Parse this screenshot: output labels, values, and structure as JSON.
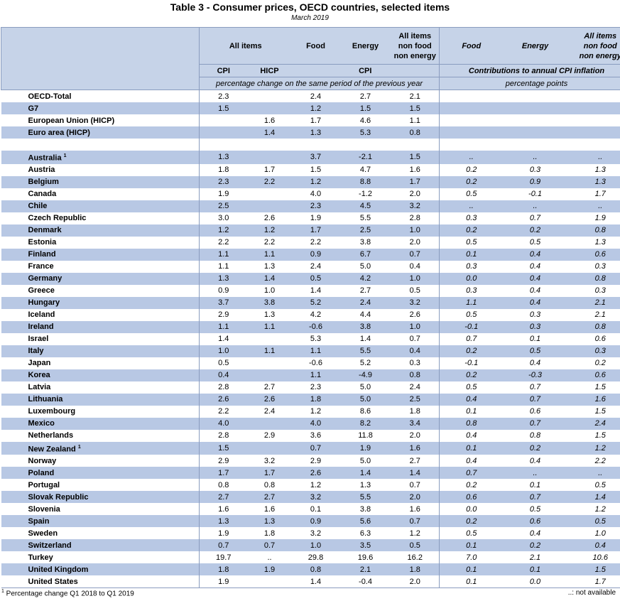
{
  "title": "Table 3 - Consumer prices, OECD countries, selected items",
  "subtitle": "March 2019",
  "headers": {
    "all_items": "All items",
    "food": "Food",
    "energy": "Energy",
    "non_food_energy": [
      "All items",
      "non food",
      "non energy"
    ],
    "food_contrib": "Food",
    "energy_contrib": "Energy",
    "non_food_energy_contrib": [
      "All items",
      "non food",
      "non energy"
    ],
    "cpi": "CPI",
    "hicp": "HICP",
    "cpi_group": "CPI",
    "contributions": "Contributions to annual CPI inflation",
    "pct_change": "percentage change on the same period of the previous year",
    "pct_points": "percentage points"
  },
  "aggregates": [
    {
      "name": "OECD-Total",
      "cpi": "2.3",
      "hicp": "",
      "food": "2.4",
      "energy": "2.7",
      "core": "2.1"
    },
    {
      "name": "G7",
      "cpi": "1.5",
      "hicp": "",
      "food": "1.2",
      "energy": "1.5",
      "core": "1.5"
    },
    {
      "name": "European Union (HICP)",
      "cpi": "",
      "hicp": "1.6",
      "food": "1.7",
      "energy": "4.6",
      "core": "1.1"
    },
    {
      "name": "Euro area (HICP)",
      "cpi": "",
      "hicp": "1.4",
      "food": "1.3",
      "energy": "5.3",
      "core": "0.8"
    }
  ],
  "countries": [
    {
      "name": "Australia",
      "note": "1",
      "cpi": "1.3",
      "hicp": "",
      "food": "3.7",
      "energy": "-2.1",
      "core": "1.5",
      "cf": "..",
      "ce": "..",
      "cc": ".."
    },
    {
      "name": "Austria",
      "note": "",
      "cpi": "1.8",
      "hicp": "1.7",
      "food": "1.5",
      "energy": "4.7",
      "core": "1.6",
      "cf": "0.2",
      "ce": "0.3",
      "cc": "1.3"
    },
    {
      "name": "Belgium",
      "note": "",
      "cpi": "2.3",
      "hicp": "2.2",
      "food": "1.2",
      "energy": "8.8",
      "core": "1.7",
      "cf": "0.2",
      "ce": "0.9",
      "cc": "1.3"
    },
    {
      "name": "Canada",
      "note": "",
      "cpi": "1.9",
      "hicp": "",
      "food": "4.0",
      "energy": "-1.2",
      "core": "2.0",
      "cf": "0.5",
      "ce": "-0.1",
      "cc": "1.7"
    },
    {
      "name": "Chile",
      "note": "",
      "cpi": "2.5",
      "hicp": "",
      "food": "2.3",
      "energy": "4.5",
      "core": "3.2",
      "cf": "..",
      "ce": "..",
      "cc": ".."
    },
    {
      "name": "Czech Republic",
      "note": "",
      "cpi": "3.0",
      "hicp": "2.6",
      "food": "1.9",
      "energy": "5.5",
      "core": "2.8",
      "cf": "0.3",
      "ce": "0.7",
      "cc": "1.9"
    },
    {
      "name": "Denmark",
      "note": "",
      "cpi": "1.2",
      "hicp": "1.2",
      "food": "1.7",
      "energy": "2.5",
      "core": "1.0",
      "cf": "0.2",
      "ce": "0.2",
      "cc": "0.8"
    },
    {
      "name": "Estonia",
      "note": "",
      "cpi": "2.2",
      "hicp": "2.2",
      "food": "2.2",
      "energy": "3.8",
      "core": "2.0",
      "cf": "0.5",
      "ce": "0.5",
      "cc": "1.3"
    },
    {
      "name": "Finland",
      "note": "",
      "cpi": "1.1",
      "hicp": "1.1",
      "food": "0.9",
      "energy": "6.7",
      "core": "0.7",
      "cf": "0.1",
      "ce": "0.4",
      "cc": "0.6"
    },
    {
      "name": "France",
      "note": "",
      "cpi": "1.1",
      "hicp": "1.3",
      "food": "2.4",
      "energy": "5.0",
      "core": "0.4",
      "cf": "0.3",
      "ce": "0.4",
      "cc": "0.3"
    },
    {
      "name": "Germany",
      "note": "",
      "cpi": "1.3",
      "hicp": "1.4",
      "food": "0.5",
      "energy": "4.2",
      "core": "1.0",
      "cf": "0.0",
      "ce": "0.4",
      "cc": "0.8"
    },
    {
      "name": "Greece",
      "note": "",
      "cpi": "0.9",
      "hicp": "1.0",
      "food": "1.4",
      "energy": "2.7",
      "core": "0.5",
      "cf": "0.3",
      "ce": "0.4",
      "cc": "0.3"
    },
    {
      "name": "Hungary",
      "note": "",
      "cpi": "3.7",
      "hicp": "3.8",
      "food": "5.2",
      "energy": "2.4",
      "core": "3.2",
      "cf": "1.1",
      "ce": "0.4",
      "cc": "2.1"
    },
    {
      "name": "Iceland",
      "note": "",
      "cpi": "2.9",
      "hicp": "1.3",
      "food": "4.2",
      "energy": "4.4",
      "core": "2.6",
      "cf": "0.5",
      "ce": "0.3",
      "cc": "2.1"
    },
    {
      "name": "Ireland",
      "note": "",
      "cpi": "1.1",
      "hicp": "1.1",
      "food": "-0.6",
      "energy": "3.8",
      "core": "1.0",
      "cf": "-0.1",
      "ce": "0.3",
      "cc": "0.8"
    },
    {
      "name": "Israel",
      "note": "",
      "cpi": "1.4",
      "hicp": "",
      "food": "5.3",
      "energy": "1.4",
      "core": "0.7",
      "cf": "0.7",
      "ce": "0.1",
      "cc": "0.6"
    },
    {
      "name": "Italy",
      "note": "",
      "cpi": "1.0",
      "hicp": "1.1",
      "food": "1.1",
      "energy": "5.5",
      "core": "0.4",
      "cf": "0.2",
      "ce": "0.5",
      "cc": "0.3"
    },
    {
      "name": "Japan",
      "note": "",
      "cpi": "0.5",
      "hicp": "",
      "food": "-0.6",
      "energy": "5.2",
      "core": "0.3",
      "cf": "-0.1",
      "ce": "0.4",
      "cc": "0.2"
    },
    {
      "name": "Korea",
      "note": "",
      "cpi": "0.4",
      "hicp": "",
      "food": "1.1",
      "energy": "-4.9",
      "core": "0.8",
      "cf": "0.2",
      "ce": "-0.3",
      "cc": "0.6"
    },
    {
      "name": "Latvia",
      "note": "",
      "cpi": "2.8",
      "hicp": "2.7",
      "food": "2.3",
      "energy": "5.0",
      "core": "2.4",
      "cf": "0.5",
      "ce": "0.7",
      "cc": "1.5"
    },
    {
      "name": "Lithuania",
      "note": "",
      "cpi": "2.6",
      "hicp": "2.6",
      "food": "1.8",
      "energy": "5.0",
      "core": "2.5",
      "cf": "0.4",
      "ce": "0.7",
      "cc": "1.6"
    },
    {
      "name": "Luxembourg",
      "note": "",
      "cpi": "2.2",
      "hicp": "2.4",
      "food": "1.2",
      "energy": "8.6",
      "core": "1.8",
      "cf": "0.1",
      "ce": "0.6",
      "cc": "1.5"
    },
    {
      "name": "Mexico",
      "note": "",
      "cpi": "4.0",
      "hicp": "",
      "food": "4.0",
      "energy": "8.2",
      "core": "3.4",
      "cf": "0.8",
      "ce": "0.7",
      "cc": "2.4"
    },
    {
      "name": "Netherlands",
      "note": "",
      "cpi": "2.8",
      "hicp": "2.9",
      "food": "3.6",
      "energy": "11.8",
      "core": "2.0",
      "cf": "0.4",
      "ce": "0.8",
      "cc": "1.5"
    },
    {
      "name": "New Zealand",
      "note": "1",
      "cpi": "1.5",
      "hicp": "",
      "food": "0.7",
      "energy": "1.9",
      "core": "1.6",
      "cf": "0.1",
      "ce": "0.2",
      "cc": "1.2"
    },
    {
      "name": "Norway",
      "note": "",
      "cpi": "2.9",
      "hicp": "3.2",
      "food": "2.9",
      "energy": "5.0",
      "core": "2.7",
      "cf": "0.4",
      "ce": "0.4",
      "cc": "2.2"
    },
    {
      "name": "Poland",
      "note": "",
      "cpi": "1.7",
      "hicp": "1.7",
      "food": "2.6",
      "energy": "1.4",
      "core": "1.4",
      "cf": "0.7",
      "ce": "..",
      "cc": ".."
    },
    {
      "name": "Portugal",
      "note": "",
      "cpi": "0.8",
      "hicp": "0.8",
      "food": "1.2",
      "energy": "1.3",
      "core": "0.7",
      "cf": "0.2",
      "ce": "0.1",
      "cc": "0.5"
    },
    {
      "name": "Slovak Republic",
      "note": "",
      "cpi": "2.7",
      "hicp": "2.7",
      "food": "3.2",
      "energy": "5.5",
      "core": "2.0",
      "cf": "0.6",
      "ce": "0.7",
      "cc": "1.4"
    },
    {
      "name": "Slovenia",
      "note": "",
      "cpi": "1.6",
      "hicp": "1.6",
      "food": "0.1",
      "energy": "3.8",
      "core": "1.6",
      "cf": "0.0",
      "ce": "0.5",
      "cc": "1.2"
    },
    {
      "name": "Spain",
      "note": "",
      "cpi": "1.3",
      "hicp": "1.3",
      "food": "0.9",
      "energy": "5.6",
      "core": "0.7",
      "cf": "0.2",
      "ce": "0.6",
      "cc": "0.5"
    },
    {
      "name": "Sweden",
      "note": "",
      "cpi": "1.9",
      "hicp": "1.8",
      "food": "3.2",
      "energy": "6.3",
      "core": "1.2",
      "cf": "0.5",
      "ce": "0.4",
      "cc": "1.0"
    },
    {
      "name": "Switzerland",
      "note": "",
      "cpi": "0.7",
      "hicp": "0.7",
      "food": "1.0",
      "energy": "3.5",
      "core": "0.5",
      "cf": "0.1",
      "ce": "0.2",
      "cc": "0.4"
    },
    {
      "name": "Turkey",
      "note": "",
      "cpi": "19.7",
      "hicp": "..",
      "food": "29.8",
      "energy": "19.6",
      "core": "16.2",
      "cf": "7.0",
      "ce": "2.1",
      "cc": "10.6"
    },
    {
      "name": "United Kingdom",
      "note": "",
      "cpi": "1.8",
      "hicp": "1.9",
      "food": "0.8",
      "energy": "2.1",
      "core": "1.8",
      "cf": "0.1",
      "ce": "0.1",
      "cc": "1.5"
    },
    {
      "name": "United States",
      "note": "",
      "cpi": "1.9",
      "hicp": "",
      "food": "1.4",
      "energy": "-0.4",
      "core": "2.0",
      "cf": "0.1",
      "ce": "0.0",
      "cc": "1.7"
    }
  ],
  "footer": {
    "note_mark": "1",
    "note_text": " Percentage change Q1 2018 to Q1 2019",
    "not_available": "..: not available"
  }
}
